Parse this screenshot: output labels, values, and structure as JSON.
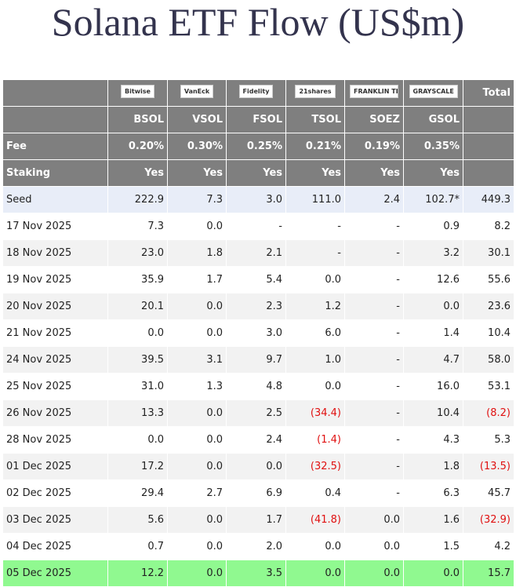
{
  "title": "Solana ETF Flow (US$m)",
  "table": {
    "logos": [
      "Bitwise",
      "VanEck",
      "Fidelity",
      "21shares",
      "FRANKLIN TEMPLETON",
      "GRAYSCALE"
    ],
    "total": "Total",
    "tickers": [
      "BSOL",
      "VSOL",
      "FSOL",
      "TSOL",
      "SOEZ",
      "GSOL"
    ],
    "fee": [
      "Fee",
      "0.20%",
      "0.30%",
      "0.25%",
      "0.21%",
      "0.19%",
      "0.35%"
    ],
    "staking": [
      "Staking",
      "Yes",
      "Yes",
      "Yes",
      "Yes",
      "Yes",
      "Yes"
    ],
    "rows": [
      [
        "Seed",
        "222.9",
        "7.3",
        "3.0",
        "111.0",
        "2.4",
        "102.7*",
        "449.3"
      ],
      [
        "17 Nov 2025",
        "7.3",
        "0.0",
        "-",
        "-",
        "-",
        "0.9",
        "8.2"
      ],
      [
        "18 Nov 2025",
        "23.0",
        "1.8",
        "2.1",
        "-",
        "-",
        "3.2",
        "30.1"
      ],
      [
        "19 Nov 2025",
        "35.9",
        "1.7",
        "5.4",
        "0.0",
        "-",
        "12.6",
        "55.6"
      ],
      [
        "20 Nov 2025",
        "20.1",
        "0.0",
        "2.3",
        "1.2",
        "-",
        "0.0",
        "23.6"
      ],
      [
        "21 Nov 2025",
        "0.0",
        "0.0",
        "3.0",
        "6.0",
        "-",
        "1.4",
        "10.4"
      ],
      [
        "24 Nov 2025",
        "39.5",
        "3.1",
        "9.7",
        "1.0",
        "-",
        "4.7",
        "58.0"
      ],
      [
        "25 Nov 2025",
        "31.0",
        "1.3",
        "4.8",
        "0.0",
        "-",
        "16.0",
        "53.1"
      ],
      [
        "26 Nov 2025",
        "13.3",
        "0.0",
        "2.5",
        "(34.4)",
        "-",
        "10.4",
        "(8.2)"
      ],
      [
        "28 Nov 2025",
        "0.0",
        "0.0",
        "2.4",
        "(1.4)",
        "-",
        "4.3",
        "5.3"
      ],
      [
        "01 Dec 2025",
        "17.2",
        "0.0",
        "0.0",
        "(32.5)",
        "-",
        "1.8",
        "(13.5)"
      ],
      [
        "02 Dec 2025",
        "29.4",
        "2.7",
        "6.9",
        "0.4",
        "-",
        "6.3",
        "45.7"
      ],
      [
        "03 Dec 2025",
        "5.6",
        "0.0",
        "1.7",
        "(41.8)",
        "0.0",
        "1.6",
        "(32.9)"
      ],
      [
        "04 Dec 2025",
        "0.7",
        "0.0",
        "2.0",
        "0.0",
        "0.0",
        "1.5",
        "4.2"
      ],
      [
        "05 Dec 2025",
        "12.2",
        "0.0",
        "3.5",
        "0.0",
        "0.0",
        "0.0",
        "15.7"
      ]
    ]
  }
}
